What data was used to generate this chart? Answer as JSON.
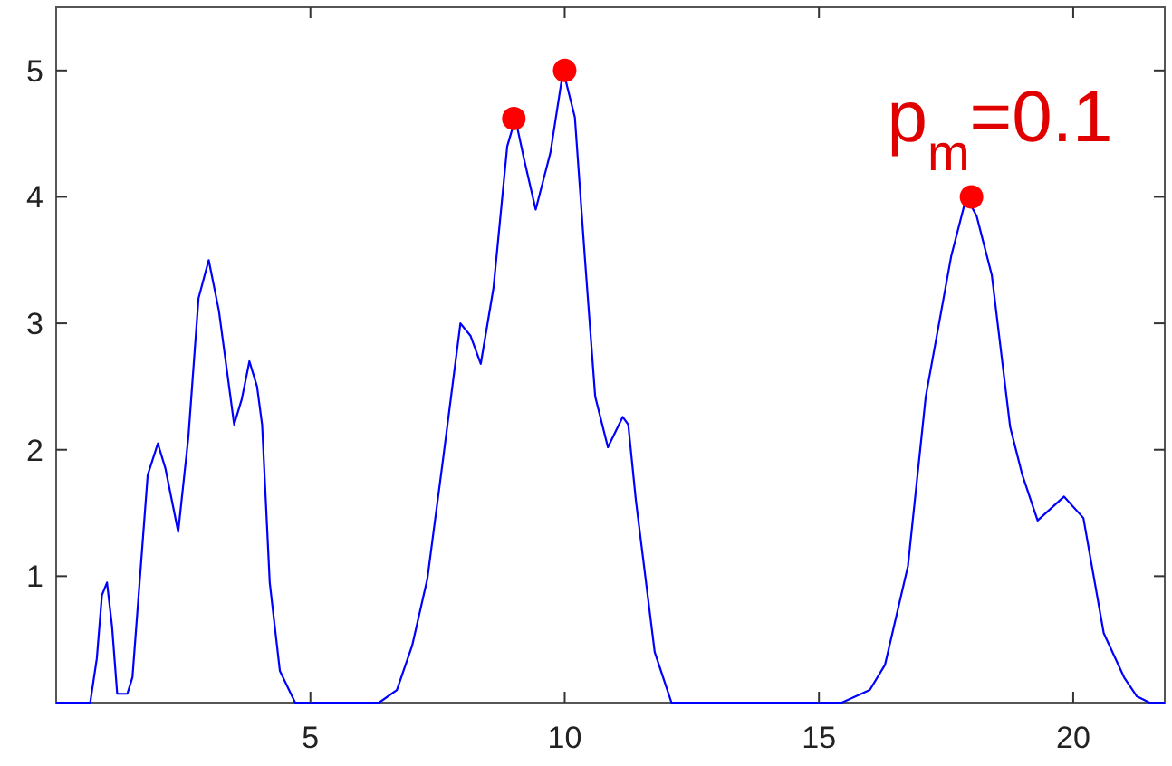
{
  "chart_data": {
    "type": "line",
    "xlim": [
      0,
      21.8
    ],
    "ylim": [
      0,
      5.5
    ],
    "xticks": [
      5,
      10,
      15,
      20
    ],
    "yticks": [
      1,
      2,
      3,
      4,
      5
    ],
    "grid": false,
    "annotations": [
      "p$_{m}$=0.1"
    ],
    "series": [
      {
        "color": "#0000ff",
        "marker": "none",
        "x": [
          0,
          0.67,
          0.8,
          0.9,
          1.0,
          1.1,
          1.2,
          1.4,
          1.5,
          1.8,
          2.0,
          2.15,
          2.4,
          2.6,
          2.8,
          3.0,
          3.2,
          3.5,
          3.65,
          3.8,
          3.95,
          4.05,
          4.2,
          4.4,
          4.7,
          6.35,
          6.7,
          7.0,
          7.3,
          7.6,
          7.95,
          8.15,
          8.35,
          8.6,
          8.87,
          9.03,
          9.2,
          9.43,
          9.72,
          9.97,
          10.2,
          10.4,
          10.6,
          10.85,
          11.14,
          11.25,
          11.4,
          11.77,
          12.1,
          15.45,
          16.0,
          16.3,
          16.75,
          17.1,
          17.6,
          17.9,
          18.1,
          18.4,
          18.76,
          19.0,
          19.3,
          19.82,
          20.2,
          20.6,
          21.0,
          21.25,
          21.5,
          21.8
        ],
        "values": [
          0,
          0,
          0.35,
          0.85,
          0.95,
          0.6,
          0.07,
          0.07,
          0.2,
          1.8,
          2.05,
          1.85,
          1.35,
          2.1,
          3.2,
          3.5,
          3.1,
          2.2,
          2.4,
          2.7,
          2.5,
          2.2,
          0.95,
          0.25,
          0,
          0,
          0.1,
          0.45,
          0.98,
          1.9,
          3.0,
          2.9,
          2.68,
          3.28,
          4.4,
          4.62,
          4.3,
          3.9,
          4.35,
          5.0,
          4.63,
          3.5,
          2.42,
          2.02,
          2.26,
          2.2,
          1.6,
          0.4,
          0,
          0,
          0.1,
          0.3,
          1.08,
          2.42,
          3.53,
          4.0,
          3.85,
          3.38,
          2.18,
          1.8,
          1.44,
          1.63,
          1.46,
          0.55,
          0.2,
          0.05,
          0,
          0
        ]
      },
      {
        "type": "scatter",
        "color": "#ff0000",
        "marker": "circle",
        "x": [
          9,
          10,
          18
        ],
        "values": [
          4.62,
          5.0,
          4.0
        ]
      }
    ]
  }
}
